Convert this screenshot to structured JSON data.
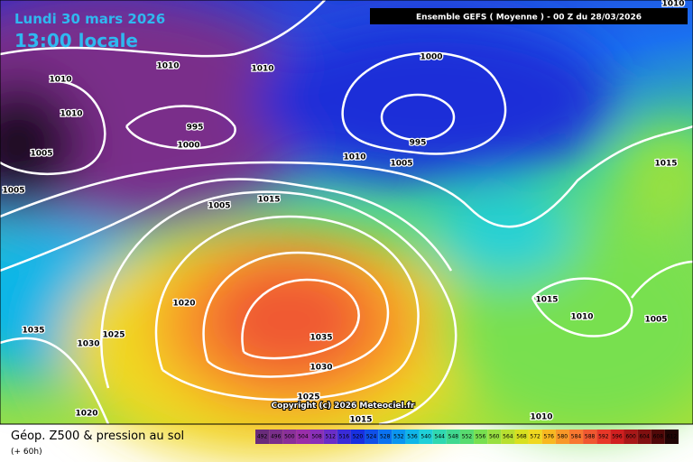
{
  "header": {
    "date": "Lundi 30 mars 2026",
    "time": "13:00 locale",
    "model": "Ensemble GEFS  ( Moyenne )  -  00 Z du 28/03/2026"
  },
  "isobars": [
    "1010",
    "1010",
    "1005",
    "1005",
    "1010",
    "1010",
    "995",
    "1000",
    "1000",
    "995",
    "1010",
    "1005",
    "1015",
    "1005",
    "1020",
    "1035",
    "1030",
    "1025",
    "1035",
    "1030",
    "1025",
    "1020",
    "1015",
    "1015",
    "1015",
    "1010",
    "1005",
    "1010",
    "1010"
  ],
  "copyright": "Copyright (c) 2026 Meteociel.fr",
  "footer": {
    "title": "Géop. Z500 & pression au sol",
    "lead": "(+ 60h)"
  },
  "legend": [
    {
      "label": "492",
      "color": "#6a2c7a"
    },
    {
      "label": "496",
      "color": "#7a2f8a"
    },
    {
      "label": "500",
      "color": "#8a3099"
    },
    {
      "label": "504",
      "color": "#9a2fa8"
    },
    {
      "label": "508",
      "color": "#8a30b8"
    },
    {
      "label": "512",
      "color": "#6a2ec8"
    },
    {
      "label": "516",
      "color": "#3a2cd8"
    },
    {
      "label": "520",
      "color": "#1830e0"
    },
    {
      "label": "524",
      "color": "#1050e8"
    },
    {
      "label": "528",
      "color": "#0a72f0"
    },
    {
      "label": "532",
      "color": "#0a95f0"
    },
    {
      "label": "536",
      "color": "#10b5e8"
    },
    {
      "label": "540",
      "color": "#20d0d8"
    },
    {
      "label": "544",
      "color": "#30d8b0"
    },
    {
      "label": "548",
      "color": "#40d890"
    },
    {
      "label": "552",
      "color": "#58dc70"
    },
    {
      "label": "556",
      "color": "#78e050"
    },
    {
      "label": "560",
      "color": "#98e040"
    },
    {
      "label": "564",
      "color": "#b8e030"
    },
    {
      "label": "568",
      "color": "#d8e020"
    },
    {
      "label": "572",
      "color": "#f0d820"
    },
    {
      "label": "576",
      "color": "#f8b820"
    },
    {
      "label": "580",
      "color": "#f89828"
    },
    {
      "label": "584",
      "color": "#f87830"
    },
    {
      "label": "588",
      "color": "#f05830"
    },
    {
      "label": "592",
      "color": "#e83828"
    },
    {
      "label": "596",
      "color": "#d02020"
    },
    {
      "label": "600",
      "color": "#a81818"
    },
    {
      "label": "604",
      "color": "#801010"
    },
    {
      "label": "608",
      "color": "#500808"
    },
    {
      "label": "612",
      "color": "#200404"
    }
  ]
}
